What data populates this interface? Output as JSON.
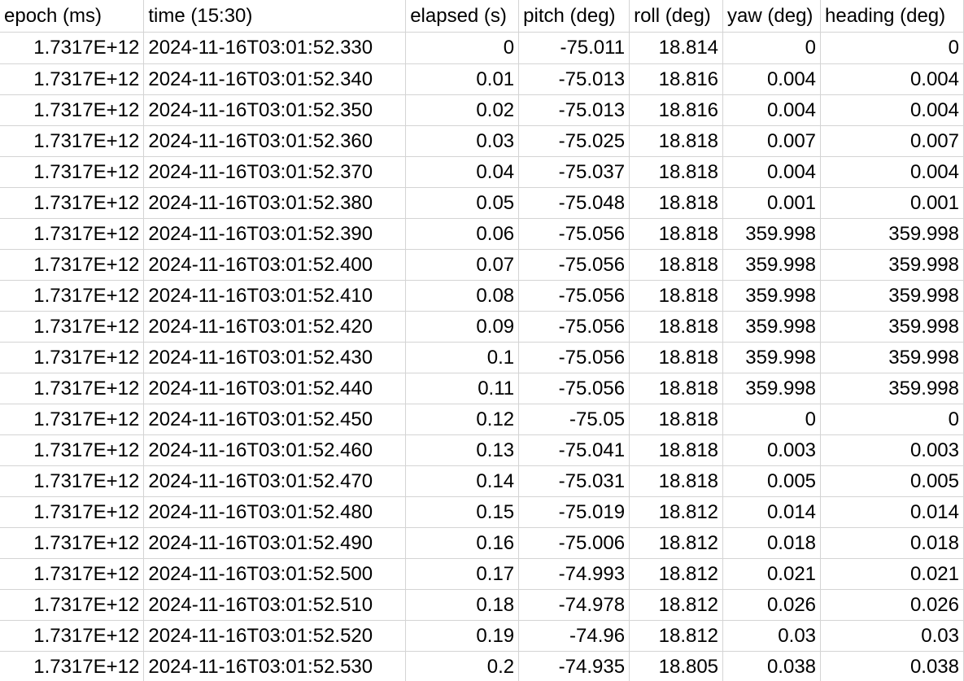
{
  "sheet": {
    "headers": [
      "epoch (ms)",
      "time (15:30)",
      "elapsed (s)",
      "pitch (deg)",
      "roll (deg)",
      "yaw (deg)",
      "heading (deg)"
    ],
    "rows": [
      [
        "1.7317E+12",
        "2024-11-16T03:01:52.330",
        "0",
        "-75.011",
        "18.814",
        "0",
        "0"
      ],
      [
        "1.7317E+12",
        "2024-11-16T03:01:52.340",
        "0.01",
        "-75.013",
        "18.816",
        "0.004",
        "0.004"
      ],
      [
        "1.7317E+12",
        "2024-11-16T03:01:52.350",
        "0.02",
        "-75.013",
        "18.816",
        "0.004",
        "0.004"
      ],
      [
        "1.7317E+12",
        "2024-11-16T03:01:52.360",
        "0.03",
        "-75.025",
        "18.818",
        "0.007",
        "0.007"
      ],
      [
        "1.7317E+12",
        "2024-11-16T03:01:52.370",
        "0.04",
        "-75.037",
        "18.818",
        "0.004",
        "0.004"
      ],
      [
        "1.7317E+12",
        "2024-11-16T03:01:52.380",
        "0.05",
        "-75.048",
        "18.818",
        "0.001",
        "0.001"
      ],
      [
        "1.7317E+12",
        "2024-11-16T03:01:52.390",
        "0.06",
        "-75.056",
        "18.818",
        "359.998",
        "359.998"
      ],
      [
        "1.7317E+12",
        "2024-11-16T03:01:52.400",
        "0.07",
        "-75.056",
        "18.818",
        "359.998",
        "359.998"
      ],
      [
        "1.7317E+12",
        "2024-11-16T03:01:52.410",
        "0.08",
        "-75.056",
        "18.818",
        "359.998",
        "359.998"
      ],
      [
        "1.7317E+12",
        "2024-11-16T03:01:52.420",
        "0.09",
        "-75.056",
        "18.818",
        "359.998",
        "359.998"
      ],
      [
        "1.7317E+12",
        "2024-11-16T03:01:52.430",
        "0.1",
        "-75.056",
        "18.818",
        "359.998",
        "359.998"
      ],
      [
        "1.7317E+12",
        "2024-11-16T03:01:52.440",
        "0.11",
        "-75.056",
        "18.818",
        "359.998",
        "359.998"
      ],
      [
        "1.7317E+12",
        "2024-11-16T03:01:52.450",
        "0.12",
        "-75.05",
        "18.818",
        "0",
        "0"
      ],
      [
        "1.7317E+12",
        "2024-11-16T03:01:52.460",
        "0.13",
        "-75.041",
        "18.818",
        "0.003",
        "0.003"
      ],
      [
        "1.7317E+12",
        "2024-11-16T03:01:52.470",
        "0.14",
        "-75.031",
        "18.818",
        "0.005",
        "0.005"
      ],
      [
        "1.7317E+12",
        "2024-11-16T03:01:52.480",
        "0.15",
        "-75.019",
        "18.812",
        "0.014",
        "0.014"
      ],
      [
        "1.7317E+12",
        "2024-11-16T03:01:52.490",
        "0.16",
        "-75.006",
        "18.812",
        "0.018",
        "0.018"
      ],
      [
        "1.7317E+12",
        "2024-11-16T03:01:52.500",
        "0.17",
        "-74.993",
        "18.812",
        "0.021",
        "0.021"
      ],
      [
        "1.7317E+12",
        "2024-11-16T03:01:52.510",
        "0.18",
        "-74.978",
        "18.812",
        "0.026",
        "0.026"
      ],
      [
        "1.7317E+12",
        "2024-11-16T03:01:52.520",
        "0.19",
        "-74.96",
        "18.812",
        "0.03",
        "0.03"
      ],
      [
        "1.7317E+12",
        "2024-11-16T03:01:52.530",
        "0.2",
        "-74.935",
        "18.805",
        "0.038",
        "0.038"
      ]
    ],
    "colors": {
      "gridline": "#d4d4d4",
      "text": "#000000",
      "background": "#ffffff"
    }
  }
}
